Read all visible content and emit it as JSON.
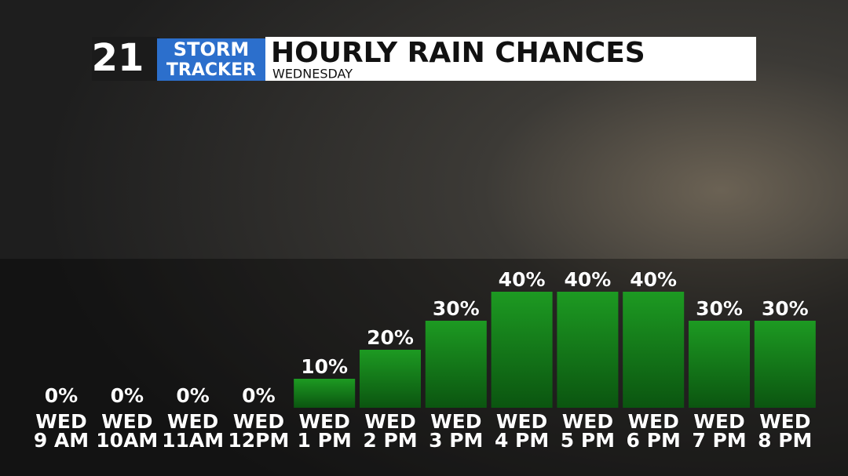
{
  "header": {
    "logo_number": "21",
    "logo_top": "STORM",
    "logo_bottom": "TRACKER"
  },
  "chart_data": {
    "type": "bar",
    "title": "HOURLY RAIN CHANCES",
    "subtitle": "WEDNESDAY",
    "categories": [
      [
        "WED",
        "9 AM"
      ],
      [
        "WED",
        "10AM"
      ],
      [
        "WED",
        "11AM"
      ],
      [
        "WED",
        "12PM"
      ],
      [
        "WED",
        "1 PM"
      ],
      [
        "WED",
        "2 PM"
      ],
      [
        "WED",
        "3 PM"
      ],
      [
        "WED",
        "4 PM"
      ],
      [
        "WED",
        "5 PM"
      ],
      [
        "WED",
        "6 PM"
      ],
      [
        "WED",
        "7 PM"
      ],
      [
        "WED",
        "8 PM"
      ]
    ],
    "values": [
      0,
      0,
      0,
      0,
      10,
      20,
      30,
      40,
      40,
      40,
      30,
      30
    ],
    "value_labels": [
      "0%",
      "0%",
      "0%",
      "0%",
      "10%",
      "20%",
      "30%",
      "40%",
      "40%",
      "40%",
      "30%",
      "30%"
    ],
    "color": "#15861a"
  }
}
